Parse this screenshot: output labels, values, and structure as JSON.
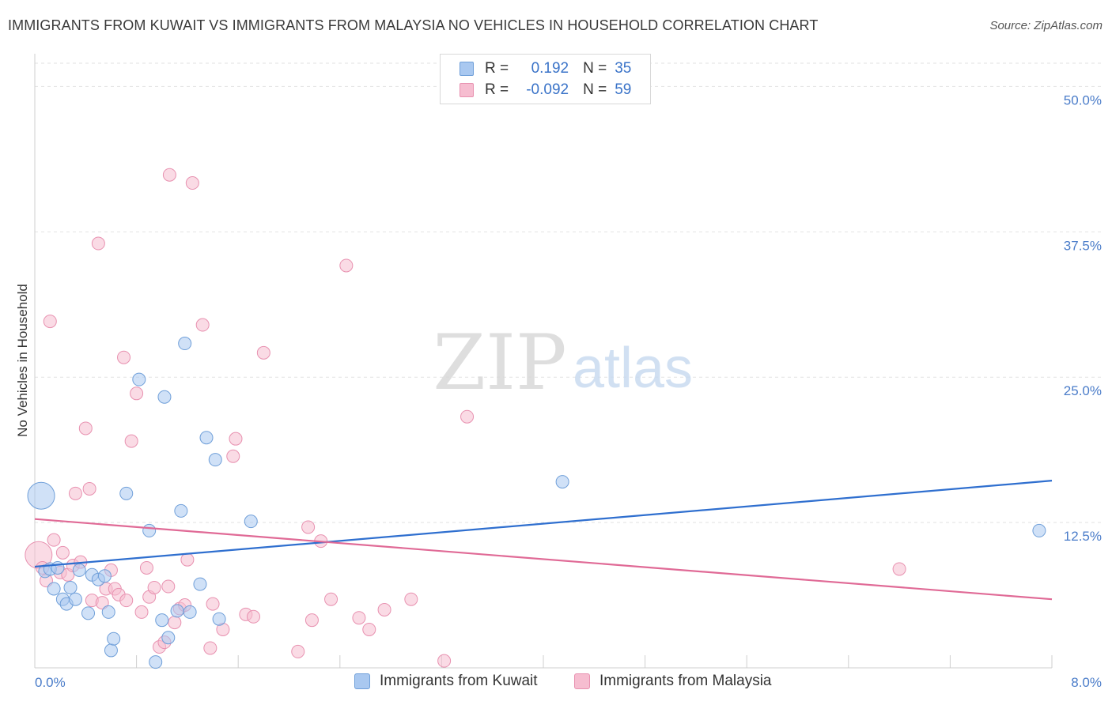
{
  "header": {
    "title": "IMMIGRANTS FROM KUWAIT VS IMMIGRANTS FROM MALAYSIA NO VEHICLES IN HOUSEHOLD CORRELATION CHART",
    "source": "Source: ZipAtlas.com"
  },
  "watermark": {
    "zip": "ZIP",
    "atlas": "atlas"
  },
  "legend": {
    "r_label": "R =",
    "n_label": "N =",
    "kuwait": {
      "r": "0.192",
      "n": "35"
    },
    "malaysia": {
      "r": "-0.092",
      "n": "59"
    }
  },
  "colors": {
    "kuwait_fill": "#a9c8f0",
    "kuwait_stroke": "#6f9fd9",
    "kuwait_line": "#2f6fcf",
    "malaysia_fill": "#f6bdd0",
    "malaysia_stroke": "#e891b0",
    "malaysia_line": "#e06a96",
    "tick_text": "#4a7cc9",
    "grid": "#e2e2e2"
  },
  "chart_data": {
    "type": "scatter",
    "title": "IMMIGRANTS FROM KUWAIT VS IMMIGRANTS FROM MALAYSIA NO VEHICLES IN HOUSEHOLD CORRELATION CHART",
    "xlabel": "",
    "ylabel": "No Vehicles in Household",
    "xlim": [
      0,
      8.0
    ],
    "ylim": [
      0,
      52
    ],
    "x_tick_labels": [
      "0.0%",
      "8.0%"
    ],
    "y_ticks": [
      12.5,
      25.0,
      37.5,
      50.0
    ],
    "y_tick_labels": [
      "12.5%",
      "25.0%",
      "37.5%",
      "50.0%"
    ],
    "grid": true,
    "legend_position": "top-center",
    "series": [
      {
        "name": "Immigrants from Kuwait",
        "r": 0.192,
        "n": 35,
        "trend": {
          "x": [
            0,
            8.0
          ],
          "y": [
            8.7,
            16.1
          ]
        },
        "points": [
          {
            "x": 0.05,
            "y": 14.8,
            "big": true
          },
          {
            "x": 0.08,
            "y": 8.3
          },
          {
            "x": 0.12,
            "y": 8.5
          },
          {
            "x": 0.15,
            "y": 6.8
          },
          {
            "x": 0.18,
            "y": 8.6
          },
          {
            "x": 0.22,
            "y": 5.9
          },
          {
            "x": 0.25,
            "y": 5.5
          },
          {
            "x": 0.28,
            "y": 6.9
          },
          {
            "x": 0.32,
            "y": 5.9
          },
          {
            "x": 0.35,
            "y": 8.4
          },
          {
            "x": 0.42,
            "y": 4.7
          },
          {
            "x": 0.45,
            "y": 8.0
          },
          {
            "x": 0.5,
            "y": 7.6
          },
          {
            "x": 0.55,
            "y": 7.9
          },
          {
            "x": 0.58,
            "y": 4.8
          },
          {
            "x": 0.6,
            "y": 1.5
          },
          {
            "x": 0.62,
            "y": 2.5
          },
          {
            "x": 0.72,
            "y": 15.0
          },
          {
            "x": 0.82,
            "y": 24.8
          },
          {
            "x": 0.9,
            "y": 11.8
          },
          {
            "x": 0.95,
            "y": 0.5
          },
          {
            "x": 1.0,
            "y": 4.1
          },
          {
            "x": 1.02,
            "y": 23.3
          },
          {
            "x": 1.05,
            "y": 2.6
          },
          {
            "x": 1.12,
            "y": 4.9
          },
          {
            "x": 1.15,
            "y": 13.5
          },
          {
            "x": 1.18,
            "y": 27.9
          },
          {
            "x": 1.22,
            "y": 4.8
          },
          {
            "x": 1.3,
            "y": 7.2
          },
          {
            "x": 1.35,
            "y": 19.8
          },
          {
            "x": 1.42,
            "y": 17.9
          },
          {
            "x": 1.45,
            "y": 4.2
          },
          {
            "x": 1.7,
            "y": 12.6
          },
          {
            "x": 4.15,
            "y": 16.0
          },
          {
            "x": 7.9,
            "y": 11.8
          }
        ]
      },
      {
        "name": "Immigrants from Malaysia",
        "r": -0.092,
        "n": 59,
        "trend": {
          "x": [
            0,
            8.0
          ],
          "y": [
            12.8,
            5.9
          ]
        },
        "points": [
          {
            "x": 0.03,
            "y": 9.7,
            "big": true
          },
          {
            "x": 0.06,
            "y": 8.6
          },
          {
            "x": 0.09,
            "y": 7.5
          },
          {
            "x": 0.12,
            "y": 29.8
          },
          {
            "x": 0.15,
            "y": 11.0
          },
          {
            "x": 0.2,
            "y": 8.2
          },
          {
            "x": 0.22,
            "y": 9.9
          },
          {
            "x": 0.26,
            "y": 8.0
          },
          {
            "x": 0.3,
            "y": 8.8
          },
          {
            "x": 0.32,
            "y": 15.0
          },
          {
            "x": 0.36,
            "y": 9.1
          },
          {
            "x": 0.4,
            "y": 20.6
          },
          {
            "x": 0.43,
            "y": 15.4
          },
          {
            "x": 0.45,
            "y": 5.8
          },
          {
            "x": 0.5,
            "y": 36.5
          },
          {
            "x": 0.53,
            "y": 5.6
          },
          {
            "x": 0.56,
            "y": 6.8
          },
          {
            "x": 0.6,
            "y": 8.4
          },
          {
            "x": 0.63,
            "y": 6.8
          },
          {
            "x": 0.66,
            "y": 6.3
          },
          {
            "x": 0.7,
            "y": 26.7
          },
          {
            "x": 0.72,
            "y": 5.8
          },
          {
            "x": 0.76,
            "y": 19.5
          },
          {
            "x": 0.8,
            "y": 23.6
          },
          {
            "x": 0.84,
            "y": 4.8
          },
          {
            "x": 0.88,
            "y": 8.6
          },
          {
            "x": 0.9,
            "y": 6.1
          },
          {
            "x": 0.94,
            "y": 6.9
          },
          {
            "x": 0.98,
            "y": 1.8
          },
          {
            "x": 1.02,
            "y": 2.2
          },
          {
            "x": 1.05,
            "y": 7.0
          },
          {
            "x": 1.06,
            "y": 42.4
          },
          {
            "x": 1.1,
            "y": 3.9
          },
          {
            "x": 1.14,
            "y": 5.1
          },
          {
            "x": 1.18,
            "y": 5.4
          },
          {
            "x": 1.2,
            "y": 9.3
          },
          {
            "x": 1.24,
            "y": 41.7
          },
          {
            "x": 1.32,
            "y": 29.5
          },
          {
            "x": 1.38,
            "y": 1.7
          },
          {
            "x": 1.4,
            "y": 5.5
          },
          {
            "x": 1.48,
            "y": 3.3
          },
          {
            "x": 1.56,
            "y": 18.2
          },
          {
            "x": 1.58,
            "y": 19.7
          },
          {
            "x": 1.66,
            "y": 4.6
          },
          {
            "x": 1.72,
            "y": 4.4
          },
          {
            "x": 1.8,
            "y": 27.1
          },
          {
            "x": 2.07,
            "y": 1.4
          },
          {
            "x": 2.15,
            "y": 12.1
          },
          {
            "x": 2.18,
            "y": 4.1
          },
          {
            "x": 2.25,
            "y": 10.9
          },
          {
            "x": 2.33,
            "y": 5.9
          },
          {
            "x": 2.45,
            "y": 34.6
          },
          {
            "x": 2.55,
            "y": 4.3
          },
          {
            "x": 2.63,
            "y": 3.3
          },
          {
            "x": 2.75,
            "y": 5.0
          },
          {
            "x": 2.96,
            "y": 5.9
          },
          {
            "x": 3.22,
            "y": 0.6
          },
          {
            "x": 3.4,
            "y": 21.6
          },
          {
            "x": 6.8,
            "y": 8.5
          }
        ]
      }
    ]
  },
  "bottom_legend": {
    "kuwait_label": "Immigrants from Kuwait",
    "malaysia_label": "Immigrants from Malaysia"
  }
}
